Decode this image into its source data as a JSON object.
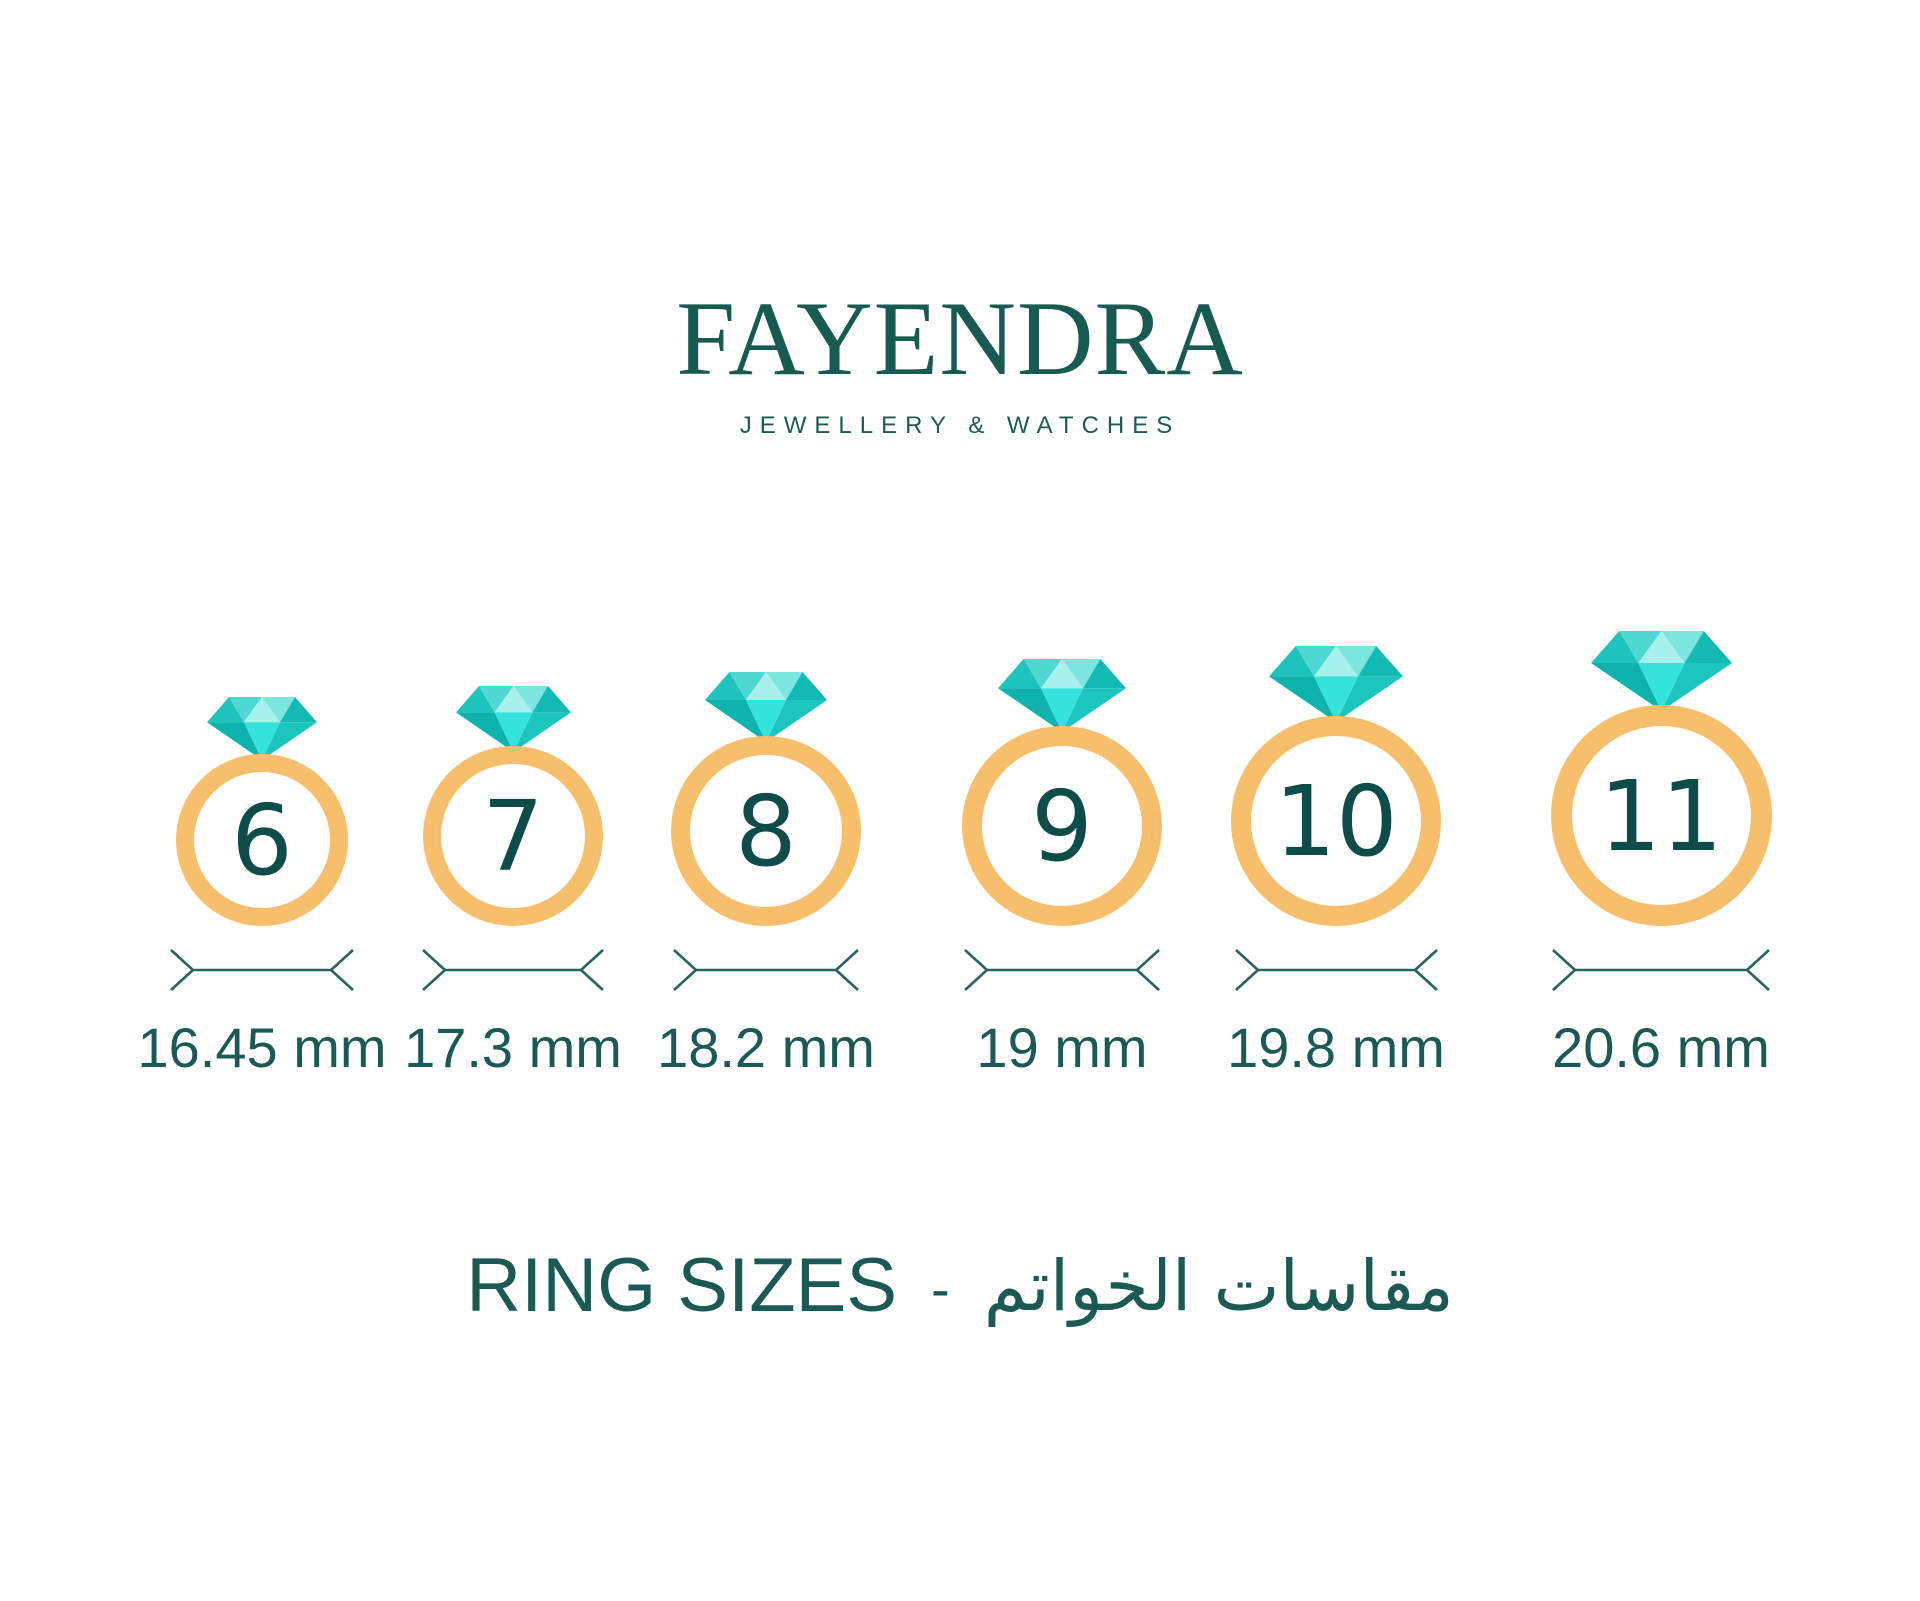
{
  "brand": {
    "name": "FAYENDRA",
    "tagline": "JEWELLERY & WATCHES"
  },
  "title": {
    "en": "RING SIZES",
    "separator": "-",
    "ar": "مقاسات الخواتم"
  },
  "rings": [
    {
      "size": "6",
      "diameter": "16.45 mm"
    },
    {
      "size": "7",
      "diameter": "17.3 mm"
    },
    {
      "size": "8",
      "diameter": "18.2 mm"
    },
    {
      "size": "9",
      "diameter": "19 mm"
    },
    {
      "size": "10",
      "diameter": "19.8 mm"
    },
    {
      "size": "11",
      "diameter": "20.6 mm"
    }
  ],
  "colors": {
    "text_teal": "#1b5a54",
    "logo_teal": "#175a51",
    "number_teal": "#0e4c49",
    "band_gold": "#f7bf6b",
    "arrow_teal": "#2a635d",
    "diamond_crown_left": "#1dc3bc",
    "diamond_crown_left_inner": "#4fd8d2",
    "diamond_crown_center": "#a8f0ec",
    "diamond_crown_right_inner": "#7be5e0",
    "diamond_crown_right": "#12bab3",
    "diamond_pavilion_left": "#0fb3ad",
    "diamond_pavilion_center": "#36e3dc",
    "diamond_pavilion_right": "#1cc6bf"
  }
}
